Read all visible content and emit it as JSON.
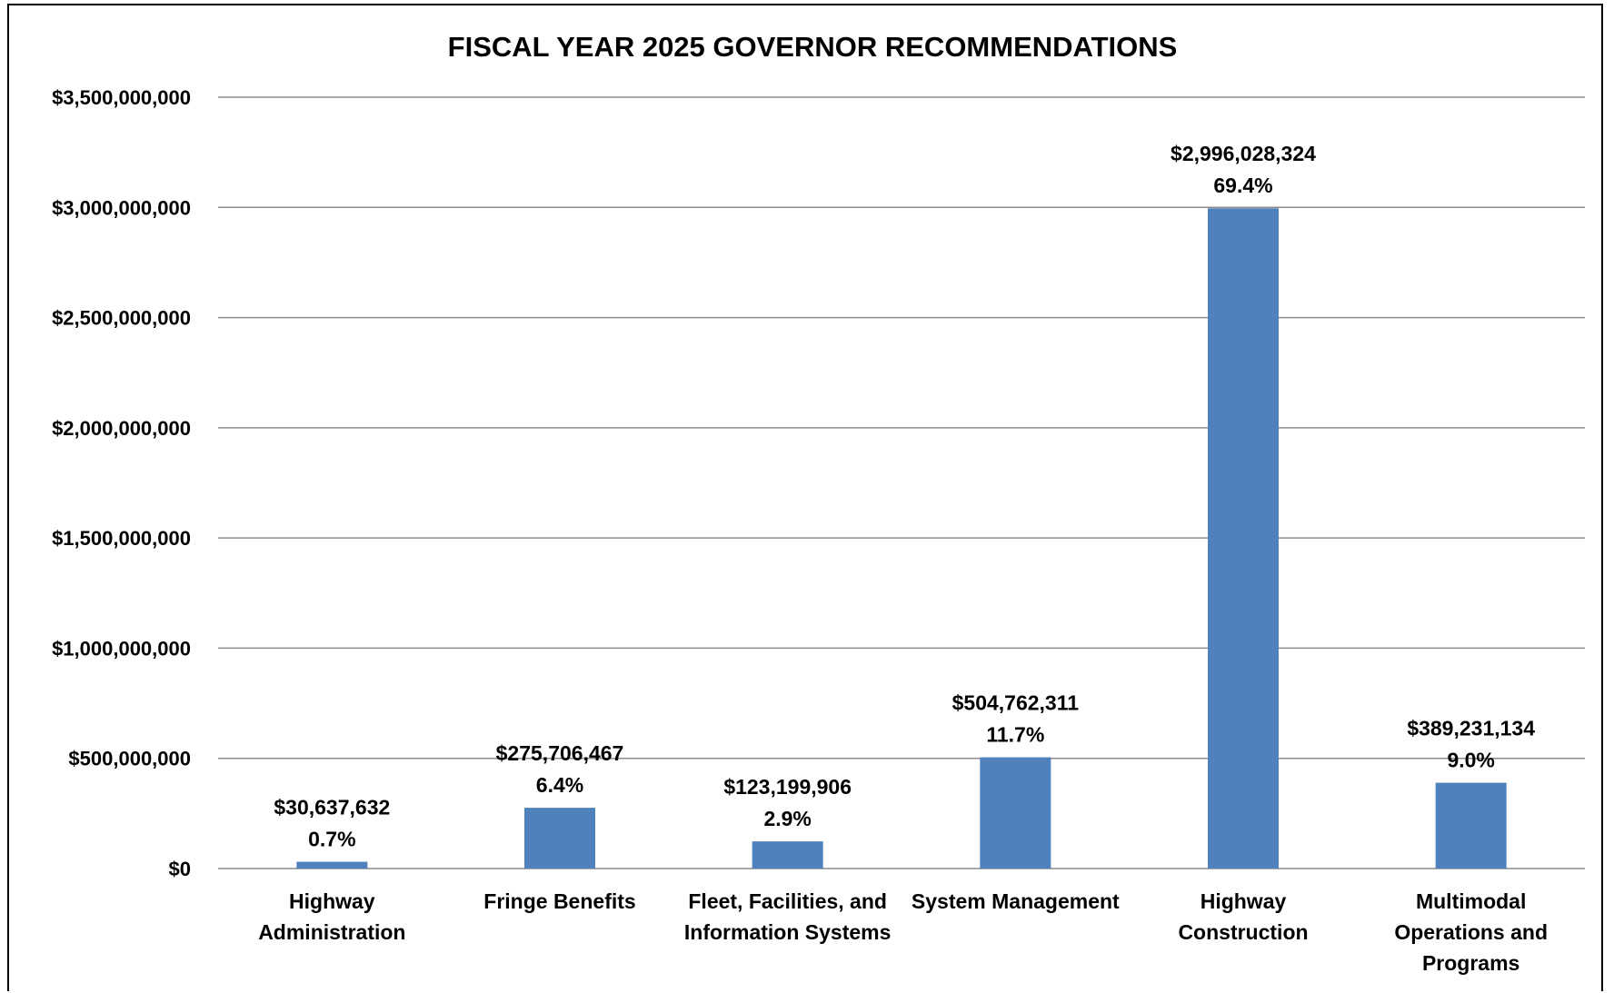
{
  "chart_data": {
    "type": "bar",
    "title": "FISCAL YEAR 2025  GOVERNOR RECOMMENDATIONS",
    "categories": [
      [
        "Highway",
        "Administration"
      ],
      [
        "Fringe Benefits"
      ],
      [
        "Fleet, Facilities, and",
        "Information Systems"
      ],
      [
        "System Management"
      ],
      [
        "Highway",
        "Construction"
      ],
      [
        "Multimodal",
        "Operations and",
        "Programs"
      ]
    ],
    "values": [
      30637632,
      275706467,
      123199906,
      504762311,
      2996028324,
      389231134
    ],
    "value_labels": [
      "$30,637,632",
      "$275,706,467",
      "$123,199,906",
      "$504,762,311",
      "$2,996,028,324",
      "$389,231,134"
    ],
    "percent_labels": [
      "0.7%",
      "6.4%",
      "2.9%",
      "11.7%",
      "69.4%",
      "9.0%"
    ],
    "ylim": [
      0,
      3500000000
    ],
    "yticks": [
      0,
      500000000,
      1000000000,
      1500000000,
      2000000000,
      2500000000,
      3000000000,
      3500000000
    ],
    "ytick_labels": [
      "$0",
      "$500,000,000",
      "$1,000,000,000",
      "$1,500,000,000",
      "$2,000,000,000",
      "$2,500,000,000",
      "$3,000,000,000",
      "$3,500,000,000"
    ],
    "xlabel": "",
    "ylabel": "",
    "grid": true,
    "legend": "none",
    "bar_color": "#4F81BD",
    "grid_color": "#8C8C8C"
  }
}
